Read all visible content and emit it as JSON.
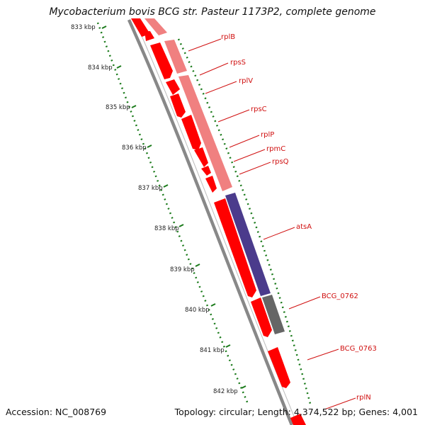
{
  "title": "Mycobacterium bovis BCG str. Pasteur 1173P2, complete genome",
  "accession": "Accession: NC_008769",
  "topology_info": "Topology: circular; Length: 4,374,522 bp; Genes: 4,001",
  "colors": {
    "gene_forward": "#ff0000",
    "gene_rna_light": "#f08080",
    "gene_purple": "#4b3b8c",
    "gene_gray": "#666666",
    "backbone": "#888888",
    "scale_ticks": "#1a7a1a",
    "label": "#d01010"
  },
  "scale_ticks": [
    "833 kbp",
    "834 kbp",
    "835 kbp",
    "836 kbp",
    "837 kbp",
    "838 kbp",
    "839 kbp",
    "840 kbp",
    "841 kbp",
    "842 kbp"
  ],
  "gene_labels": [
    "rplB",
    "rpsS",
    "rplV",
    "rpsC",
    "rplP",
    "rpmC",
    "rpsQ",
    "atsA",
    "BCG_0762",
    "BCG_0763",
    "rplN"
  ]
}
